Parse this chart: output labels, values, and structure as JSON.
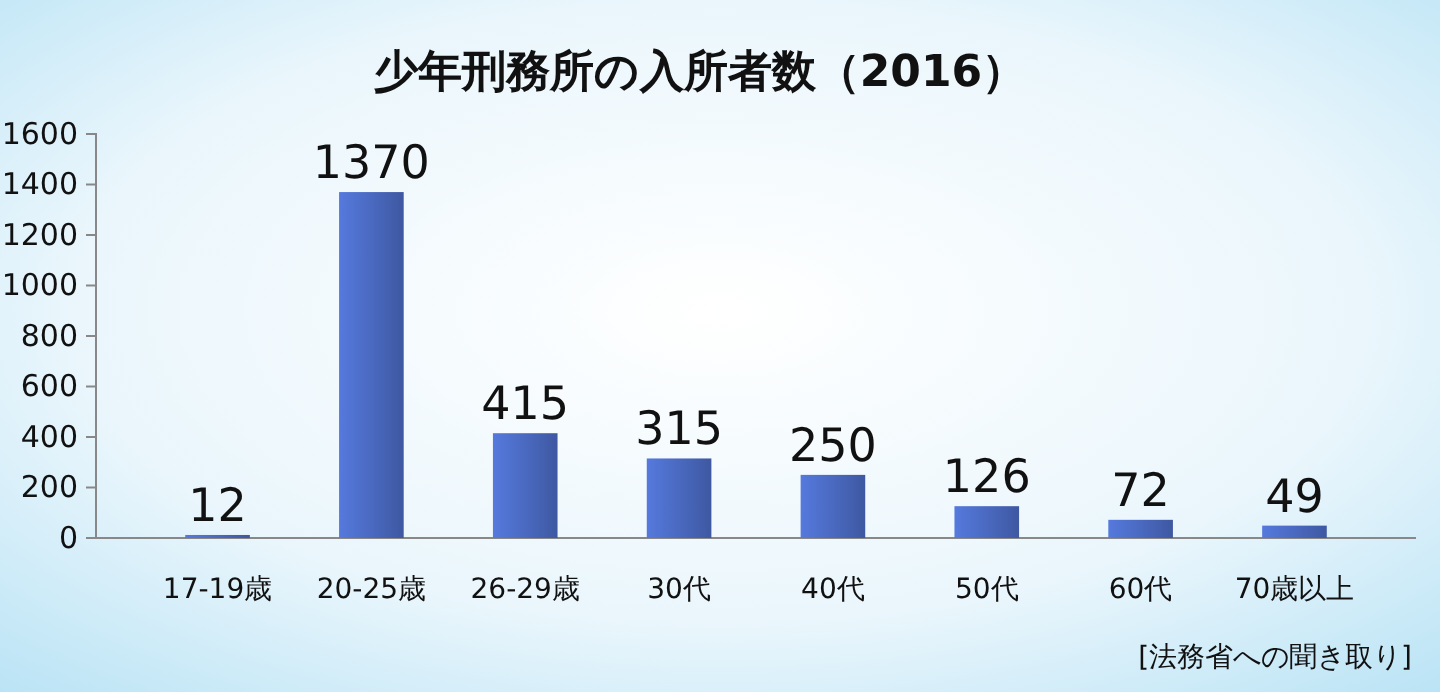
{
  "chart_data": {
    "type": "bar",
    "title": "少年刑務所の入所者数（2016）",
    "categories": [
      "17-19歳",
      "20-25歳",
      "26-29歳",
      "30代",
      "40代",
      "50代",
      "60代",
      "70歳以上"
    ],
    "values": [
      12,
      1370,
      415,
      315,
      250,
      126,
      72,
      49
    ],
    "color": "#4a69c0",
    "ylim": [
      0,
      1600
    ],
    "yticks": [
      0,
      200,
      400,
      600,
      800,
      1000,
      1200,
      1400,
      1600
    ],
    "data_labels": true,
    "annotations": [
      "[法務省への聞き取り]"
    ]
  }
}
